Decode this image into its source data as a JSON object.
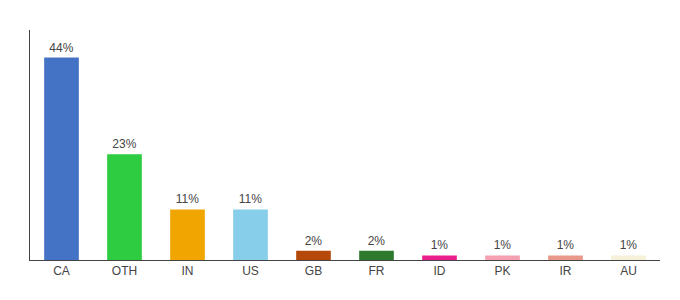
{
  "chart_data": {
    "type": "bar",
    "categories": [
      "CA",
      "OTH",
      "IN",
      "US",
      "GB",
      "FR",
      "ID",
      "PK",
      "IR",
      "AU"
    ],
    "values": [
      44,
      23,
      11,
      11,
      2,
      2,
      1,
      1,
      1,
      1
    ],
    "value_labels": [
      "44%",
      "23%",
      "11%",
      "11%",
      "2%",
      "2%",
      "1%",
      "1%",
      "1%",
      "1%"
    ],
    "colors": [
      "#4472c4",
      "#2ecc40",
      "#f0a500",
      "#87ceeb",
      "#b5490a",
      "#2d7a2d",
      "#e91e8c",
      "#f4a0b0",
      "#e8998a",
      "#f5f0d8"
    ],
    "ylim": [
      0,
      50
    ],
    "data_labels": true,
    "tick_labels": "x",
    "grid": false
  }
}
